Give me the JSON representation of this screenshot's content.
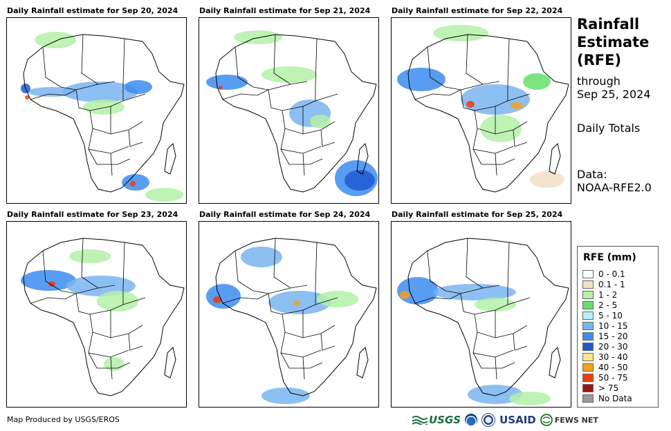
{
  "panels": [
    {
      "title": "Daily Rainfall estimate for Sep 20, 2024"
    },
    {
      "title": "Daily Rainfall estimate for Sep 21, 2024"
    },
    {
      "title": "Daily Rainfall estimate for Sep 22, 2024"
    },
    {
      "title": "Daily Rainfall estimate for Sep 23, 2024"
    },
    {
      "title": "Daily Rainfall estimate for Sep 24, 2024"
    },
    {
      "title": "Daily Rainfall estimate for Sep 25, 2024"
    }
  ],
  "side": {
    "title_line1": "Rainfall",
    "title_line2": "Estimate",
    "title_line3": "(RFE)",
    "through_label": "through",
    "through_date": "Sep 25, 2024",
    "totals_label": "Daily Totals",
    "data_label": "Data:",
    "data_source": "NOAA-RFE2.0"
  },
  "legend": {
    "title": "RFE (mm)",
    "items": [
      {
        "label": "0 - 0.1",
        "color": "#ffffff"
      },
      {
        "label": "0.1 - 1",
        "color": "#f2dfc4"
      },
      {
        "label": "1 - 2",
        "color": "#b4f0a8"
      },
      {
        "label": "2 - 5",
        "color": "#66e06a"
      },
      {
        "label": "5 - 10",
        "color": "#b4f0f5"
      },
      {
        "label": "10 - 15",
        "color": "#7ab4f0"
      },
      {
        "label": "15 - 20",
        "color": "#3c8cf0"
      },
      {
        "label": "20 - 30",
        "color": "#1e5ad2"
      },
      {
        "label": "30 - 40",
        "color": "#fae68c"
      },
      {
        "label": "40 - 50",
        "color": "#f5a01e"
      },
      {
        "label": "50 - 75",
        "color": "#f03c0a"
      },
      {
        "label": "> 75",
        "color": "#a01414"
      },
      {
        "label": "No Data",
        "color": "#999999"
      }
    ]
  },
  "footer": {
    "credit": "Map Produced by USGS/EROS",
    "logo_usgs": "USGS",
    "logo_usaid": "USAID",
    "logo_fews": "FEWS NET"
  }
}
